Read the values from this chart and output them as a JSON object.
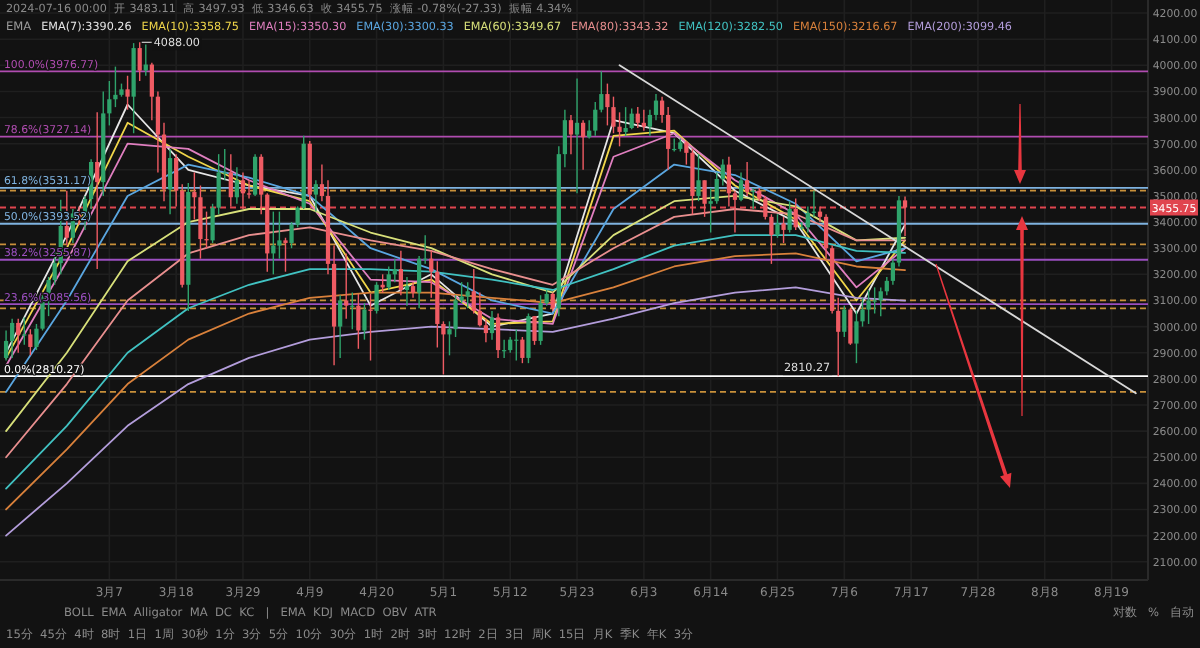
{
  "chart_data": {
    "type": "candlestick",
    "colors": [
      "#2fa36b",
      "#2fa36b",
      "#ef5b63",
      "#2fa36b",
      "#ef5b63",
      "#2fa36b",
      "#2fa36b",
      "#2fa36b",
      "#2fa36b",
      "#2fa36b",
      "#ef5b63",
      "#2fa36b",
      "#ef5b63",
      "#2fa36b",
      "#2fa36b",
      "#ef5b63",
      "#2fa36b",
      "#2fa36b",
      "#2fa36b",
      "#2fa36b",
      "#ef5b63",
      "#2fa36b",
      "#ef5b63",
      "#2fa36b",
      "#ef5b63",
      "#ef5b63",
      "#ef5b63",
      "#2fa36b",
      "#ef5b63",
      "#ef5b63",
      "#2fa36b",
      "#ef5b63",
      "#ef5b63",
      "#ef5b63",
      "#2fa36b",
      "#2fa36b",
      "#2fa36b",
      "#ef5b63",
      "#2fa36b",
      "#ef5b63",
      "#ef5b63",
      "#2fa36b",
      "#ef5b63",
      "#ef5b63",
      "#2fa36b",
      "#2fa36b",
      "#ef5b63",
      "#2fa36b",
      "#2fa36b",
      "#2fa36b",
      "#ef5b63",
      "#2fa36b",
      "#ef5b63",
      "#ef5b63",
      "#ef5b63",
      "#2fa36b",
      "#ef5b63",
      "#2fa36b",
      "#ef5b63",
      "#2fa36b",
      "#ef5b63",
      "#2fa36b",
      "#ef5b63",
      "#2fa36b",
      "#2fa36b",
      "#ef5b63",
      "#2fa36b",
      "#ef5b63",
      "#2fa36b",
      "#2fa36b",
      "#ef5b63",
      "#ef5b63",
      "#ef5b63",
      "#2fa36b",
      "#2fa36b",
      "#2fa36b",
      "#2fa36b",
      "#ef5b63",
      "#ef5b63",
      "#ef5b63",
      "#2fa36b",
      "#ef5b63",
      "#2fa36b",
      "#2fa36b",
      "#2fa36b",
      "#ef5b63",
      "#2fa36b",
      "#ef5b63",
      "#2fa36b",
      "#2fa36b",
      "#ef5b63",
      "#2fa36b",
      "#2fa36b",
      "#ef5b63",
      "#2fa36b",
      "#ef5b63",
      "#2fa36b",
      "#2fa36b",
      "#2fa36b",
      "#ef5b63",
      "#ef5b63",
      "#ef5b63",
      "#2fa36b",
      "#2fa36b",
      "#ef5b63",
      "#ef5b63",
      "#2fa36b",
      "#2fa36b",
      "#ef5b63",
      "#ef5b63",
      "#2fa36b",
      "#2fa36b",
      "#ef5b63",
      "#ef5b63",
      "#2fa36b",
      "#ef5b63",
      "#2fa36b",
      "#2fa36b",
      "#2fa36b",
      "#ef5b63",
      "#ef5b63",
      "#2fa36b",
      "#ef5b63",
      "#2fa36b",
      "#ef5b63",
      "#ef5b63",
      "#ef5b63",
      "#2fa36b",
      "#ef5b63",
      "#2fa36b",
      "#ef5b63",
      "#2fa36b",
      "#2fa36b",
      "#2fa36b",
      "#ef5b63",
      "#ef5b63",
      "#ef5b63",
      "#ef5b63",
      "#2fa36b",
      "#ef5b63",
      "#2fa36b",
      "#2fa36b",
      "#2fa36b",
      "#2fa36b",
      "#2fa36b",
      "#2fa36b",
      "#2fa36b",
      "#2fa36b",
      "#ef5b63"
    ],
    "x": [
      "2024-02-19",
      "2024-02-20",
      "2024-02-21",
      "2024-02-22",
      "2024-02-23",
      "2024-02-24",
      "2024-02-25",
      "2024-02-26",
      "2024-02-27",
      "2024-02-28",
      "2024-02-29",
      "2024-03-01",
      "2024-03-02",
      "2024-03-03",
      "2024-03-04",
      "2024-03-05",
      "2024-03-06",
      "2024-03-07",
      "2024-03-08",
      "2024-03-09",
      "2024-03-10",
      "2024-03-11",
      "2024-03-12",
      "2024-03-13",
      "2024-03-14",
      "2024-03-15",
      "2024-03-16",
      "2024-03-17",
      "2024-03-18",
      "2024-03-19",
      "2024-03-20",
      "2024-03-21",
      "2024-03-22",
      "2024-03-23",
      "2024-03-24",
      "2024-03-25",
      "2024-03-26",
      "2024-03-27",
      "2024-03-28",
      "2024-03-29",
      "2024-03-30",
      "2024-03-31",
      "2024-04-01",
      "2024-04-02",
      "2024-04-03",
      "2024-04-04",
      "2024-04-05",
      "2024-04-06",
      "2024-04-07",
      "2024-04-08",
      "2024-04-09",
      "2024-04-10",
      "2024-04-11",
      "2024-04-12",
      "2024-04-13",
      "2024-04-14",
      "2024-04-15",
      "2024-04-16",
      "2024-04-17",
      "2024-04-18",
      "2024-04-19",
      "2024-04-20",
      "2024-04-21",
      "2024-04-22",
      "2024-04-23",
      "2024-04-24",
      "2024-04-25",
      "2024-04-26",
      "2024-04-27",
      "2024-04-28",
      "2024-04-29",
      "2024-04-30",
      "2024-05-01",
      "2024-05-02",
      "2024-05-03",
      "2024-05-04",
      "2024-05-05",
      "2024-05-06",
      "2024-05-07",
      "2024-05-08",
      "2024-05-09",
      "2024-05-10",
      "2024-05-11",
      "2024-05-12",
      "2024-05-13",
      "2024-05-14",
      "2024-05-15",
      "2024-05-16",
      "2024-05-17",
      "2024-05-18",
      "2024-05-19",
      "2024-05-20",
      "2024-05-21",
      "2024-05-22",
      "2024-05-23",
      "2024-05-24",
      "2024-05-25",
      "2024-05-26",
      "2024-05-27",
      "2024-05-28",
      "2024-05-29",
      "2024-05-30",
      "2024-05-31",
      "2024-06-01",
      "2024-06-02",
      "2024-06-03",
      "2024-06-04",
      "2024-06-05",
      "2024-06-06",
      "2024-06-07",
      "2024-06-08",
      "2024-06-09",
      "2024-06-10",
      "2024-06-11",
      "2024-06-12",
      "2024-06-13",
      "2024-06-14",
      "2024-06-15",
      "2024-06-16",
      "2024-06-17",
      "2024-06-18",
      "2024-06-19",
      "2024-06-20",
      "2024-06-21",
      "2024-06-22",
      "2024-06-23",
      "2024-06-24",
      "2024-06-25",
      "2024-06-26",
      "2024-06-27",
      "2024-06-28",
      "2024-06-29",
      "2024-06-30",
      "2024-07-01",
      "2024-07-02",
      "2024-07-03",
      "2024-07-04",
      "2024-07-05",
      "2024-07-06",
      "2024-07-07",
      "2024-07-08",
      "2024-07-09",
      "2024-07-10",
      "2024-07-11",
      "2024-07-12",
      "2024-07-13",
      "2024-07-14",
      "2024-07-15",
      "2024-07-16"
    ],
    "ohlc": [
      [
        2880,
        2985,
        2870,
        2945
      ],
      [
        2945,
        3030,
        2880,
        3014
      ],
      [
        3014,
        3030,
        2900,
        2968
      ],
      [
        2968,
        3035,
        2930,
        2970
      ],
      [
        2970,
        2990,
        2890,
        2922
      ],
      [
        2922,
        3010,
        2910,
        2992
      ],
      [
        2992,
        3120,
        2985,
        3112
      ],
      [
        3112,
        3190,
        3040,
        3178
      ],
      [
        3178,
        3290,
        3160,
        3243
      ],
      [
        3243,
        3485,
        3200,
        3385
      ],
      [
        3385,
        3520,
        3310,
        3340
      ],
      [
        3340,
        3450,
        3320,
        3433
      ],
      [
        3433,
        3460,
        3390,
        3420
      ],
      [
        3420,
        3500,
        3370,
        3488
      ],
      [
        3488,
        3640,
        3450,
        3630
      ],
      [
        3630,
        3820,
        3220,
        3553
      ],
      [
        3553,
        3900,
        3500,
        3816
      ],
      [
        3816,
        3940,
        3770,
        3870
      ],
      [
        3870,
        3995,
        3840,
        3887
      ],
      [
        3887,
        3930,
        3880,
        3908
      ],
      [
        3908,
        3960,
        3830,
        3880
      ],
      [
        3880,
        4085,
        3740,
        4066
      ],
      [
        4066,
        4088,
        3940,
        3980
      ],
      [
        3980,
        4080,
        3960,
        4003
      ],
      [
        4003,
        4010,
        3790,
        3880
      ],
      [
        3880,
        3900,
        3590,
        3735
      ],
      [
        3735,
        3780,
        3480,
        3525
      ],
      [
        3525,
        3680,
        3430,
        3645
      ],
      [
        3645,
        3660,
        3460,
        3520
      ],
      [
        3520,
        3545,
        3150,
        3160
      ],
      [
        3160,
        3550,
        3060,
        3515
      ],
      [
        3515,
        3590,
        3410,
        3495
      ],
      [
        3495,
        3540,
        3260,
        3335
      ],
      [
        3335,
        3440,
        3300,
        3330
      ],
      [
        3330,
        3470,
        3320,
        3455
      ],
      [
        3455,
        3660,
        3430,
        3590
      ],
      [
        3590,
        3680,
        3560,
        3590
      ],
      [
        3590,
        3660,
        3460,
        3495
      ],
      [
        3495,
        3610,
        3470,
        3560
      ],
      [
        3560,
        3590,
        3450,
        3510
      ],
      [
        3510,
        3560,
        3490,
        3505
      ],
      [
        3505,
        3660,
        3500,
        3650
      ],
      [
        3650,
        3660,
        3430,
        3505
      ],
      [
        3505,
        3510,
        3210,
        3280
      ],
      [
        3280,
        3440,
        3200,
        3310
      ],
      [
        3310,
        3440,
        3260,
        3330
      ],
      [
        3330,
        3340,
        3210,
        3320
      ],
      [
        3320,
        3400,
        3300,
        3390
      ],
      [
        3390,
        3460,
        3380,
        3455
      ],
      [
        3455,
        3730,
        3450,
        3700
      ],
      [
        3700,
        3710,
        3480,
        3505
      ],
      [
        3505,
        3560,
        3440,
        3545
      ],
      [
        3545,
        3620,
        3480,
        3500
      ],
      [
        3500,
        3560,
        3200,
        3240
      ],
      [
        3240,
        3310,
        2852,
        3000
      ],
      [
        3000,
        3120,
        2880,
        3100
      ],
      [
        3100,
        3280,
        3030,
        3080
      ],
      [
        3080,
        3130,
        2990,
        3080
      ],
      [
        3080,
        3125,
        2915,
        2985
      ],
      [
        2985,
        3090,
        2950,
        3065
      ],
      [
        3065,
        3125,
        2870,
        3060
      ],
      [
        3060,
        3170,
        3050,
        3160
      ],
      [
        3160,
        3200,
        3130,
        3150
      ],
      [
        3150,
        3230,
        3140,
        3200
      ],
      [
        3200,
        3260,
        3170,
        3220
      ],
      [
        3220,
        3290,
        3120,
        3140
      ],
      [
        3140,
        3190,
        3080,
        3155
      ],
      [
        3155,
        3170,
        3110,
        3130
      ],
      [
        3130,
        3270,
        3070,
        3260
      ],
      [
        3260,
        3350,
        3240,
        3260
      ],
      [
        3260,
        3290,
        3110,
        3210
      ],
      [
        3210,
        3250,
        2920,
        3010
      ],
      [
        3010,
        3020,
        2817,
        2970
      ],
      [
        2970,
        3020,
        2890,
        2990
      ],
      [
        2990,
        3120,
        2960,
        3100
      ],
      [
        3100,
        3170,
        3090,
        3115
      ],
      [
        3115,
        3170,
        3070,
        3135
      ],
      [
        3135,
        3220,
        3050,
        3060
      ],
      [
        3060,
        3130,
        3000,
        3005
      ],
      [
        3005,
        3030,
        2940,
        2975
      ],
      [
        2975,
        3060,
        2950,
        3035
      ],
      [
        3035,
        3050,
        2880,
        2910
      ],
      [
        2910,
        2950,
        2880,
        2910
      ],
      [
        2910,
        2960,
        2900,
        2950
      ],
      [
        2950,
        2990,
        2870,
        2950
      ],
      [
        2950,
        2960,
        2860,
        2880
      ],
      [
        2880,
        3050,
        2860,
        3040
      ],
      [
        3040,
        3040,
        2930,
        2945
      ],
      [
        2945,
        3120,
        2930,
        3090
      ],
      [
        3090,
        3140,
        3080,
        3125
      ],
      [
        3125,
        3130,
        3060,
        3070
      ],
      [
        3070,
        3690,
        3040,
        3660
      ],
      [
        3660,
        3830,
        3610,
        3790
      ],
      [
        3790,
        3810,
        3660,
        3735
      ],
      [
        3735,
        3950,
        3510,
        3780
      ],
      [
        3780,
        3790,
        3600,
        3725
      ],
      [
        3725,
        3790,
        3720,
        3750
      ],
      [
        3750,
        3860,
        3730,
        3830
      ],
      [
        3830,
        3977,
        3820,
        3890
      ],
      [
        3890,
        3930,
        3770,
        3840
      ],
      [
        3840,
        3880,
        3740,
        3765
      ],
      [
        3765,
        3820,
        3690,
        3745
      ],
      [
        3745,
        3840,
        3730,
        3760
      ],
      [
        3760,
        3835,
        3755,
        3815
      ],
      [
        3815,
        3840,
        3760,
        3780
      ],
      [
        3780,
        3830,
        3750,
        3765
      ],
      [
        3765,
        3830,
        3730,
        3810
      ],
      [
        3810,
        3890,
        3790,
        3865
      ],
      [
        3865,
        3880,
        3780,
        3810
      ],
      [
        3810,
        3840,
        3600,
        3680
      ],
      [
        3680,
        3720,
        3670,
        3680
      ],
      [
        3680,
        3720,
        3670,
        3705
      ],
      [
        3705,
        3710,
        3620,
        3665
      ],
      [
        3665,
        3680,
        3430,
        3500
      ],
      [
        3500,
        3660,
        3480,
        3560
      ],
      [
        3560,
        3560,
        3420,
        3470
      ],
      [
        3470,
        3530,
        3360,
        3480
      ],
      [
        3480,
        3590,
        3470,
        3565
      ],
      [
        3565,
        3640,
        3540,
        3620
      ],
      [
        3620,
        3650,
        3460,
        3510
      ],
      [
        3510,
        3520,
        3360,
        3485
      ],
      [
        3485,
        3590,
        3480,
        3560
      ],
      [
        3560,
        3630,
        3500,
        3515
      ],
      [
        3515,
        3530,
        3450,
        3520
      ],
      [
        3520,
        3530,
        3480,
        3490
      ],
      [
        3490,
        3500,
        3410,
        3420
      ],
      [
        3420,
        3430,
        3240,
        3350
      ],
      [
        3350,
        3430,
        3340,
        3395
      ],
      [
        3395,
        3420,
        3320,
        3370
      ],
      [
        3370,
        3480,
        3360,
        3450
      ],
      [
        3450,
        3490,
        3370,
        3380
      ],
      [
        3380,
        3400,
        3370,
        3380
      ],
      [
        3380,
        3460,
        3360,
        3435
      ],
      [
        3435,
        3520,
        3420,
        3440
      ],
      [
        3440,
        3460,
        3400,
        3420
      ],
      [
        3420,
        3430,
        3260,
        3300
      ],
      [
        3300,
        3310,
        3050,
        3060
      ],
      [
        3060,
        3110,
        2810.27,
        2980
      ],
      [
        2980,
        3080,
        2960,
        3065
      ],
      [
        3065,
        3070,
        2930,
        2935
      ],
      [
        2935,
        3060,
        2860,
        3020
      ],
      [
        3020,
        3110,
        3000,
        3065
      ],
      [
        3065,
        3140,
        3010,
        3100
      ],
      [
        3100,
        3150,
        3050,
        3100
      ],
      [
        3100,
        3150,
        3040,
        3135
      ],
      [
        3135,
        3190,
        3120,
        3175
      ],
      [
        3175,
        3260,
        3160,
        3245
      ],
      [
        3245,
        3500,
        3230,
        3483.11
      ],
      [
        3483.11,
        3497.93,
        3346.63,
        3455.75
      ]
    ],
    "legend_title": "EMA",
    "legend": "top left",
    "series": [
      {
        "type": "line",
        "name": "EMA(7):3390.26",
        "color": "#e6e6e6",
        "x": [
          "2024-02-19",
          "2024-02-29",
          "2024-03-10",
          "2024-03-20",
          "2024-03-30",
          "2024-04-09",
          "2024-04-19",
          "2024-04-29",
          "2024-05-09",
          "2024-05-19",
          "2024-05-29",
          "2024-06-08",
          "2024-06-18",
          "2024-06-28",
          "2024-07-08",
          "2024-07-16"
        ],
        "values": [
          2900,
          3350,
          3850,
          3600,
          3540,
          3500,
          3080,
          3200,
          3000,
          3050,
          3790,
          3740,
          3520,
          3400,
          3050,
          3390
        ]
      },
      {
        "type": "line",
        "name": "EMA(10):3358.75",
        "color": "#f0d64a",
        "x": [
          "2024-02-19",
          "2024-02-29",
          "2024-03-10",
          "2024-03-20",
          "2024-03-30",
          "2024-04-09",
          "2024-04-19",
          "2024-04-29",
          "2024-05-09",
          "2024-05-19",
          "2024-05-29",
          "2024-06-08",
          "2024-06-18",
          "2024-06-28",
          "2024-07-08",
          "2024-07-16"
        ],
        "values": [
          2880,
          3300,
          3780,
          3650,
          3540,
          3480,
          3130,
          3180,
          3010,
          3020,
          3730,
          3750,
          3540,
          3410,
          3100,
          3330
        ]
      },
      {
        "type": "line",
        "name": "EMA(15):3350.30",
        "color": "#e07fc0",
        "x": [
          "2024-02-19",
          "2024-02-29",
          "2024-03-10",
          "2024-03-20",
          "2024-03-30",
          "2024-04-09",
          "2024-04-19",
          "2024-04-29",
          "2024-05-09",
          "2024-05-19",
          "2024-05-29",
          "2024-06-08",
          "2024-06-18",
          "2024-06-28",
          "2024-07-08",
          "2024-07-16"
        ],
        "values": [
          2850,
          3250,
          3700,
          3680,
          3560,
          3470,
          3180,
          3170,
          3030,
          3010,
          3650,
          3740,
          3560,
          3430,
          3150,
          3300
        ]
      },
      {
        "type": "line",
        "name": "EMA(30):3300.33",
        "color": "#5aa6e0",
        "x": [
          "2024-02-19",
          "2024-02-29",
          "2024-03-10",
          "2024-03-20",
          "2024-03-30",
          "2024-04-09",
          "2024-04-19",
          "2024-04-29",
          "2024-05-09",
          "2024-05-19",
          "2024-05-29",
          "2024-06-08",
          "2024-06-18",
          "2024-06-28",
          "2024-07-08",
          "2024-07-16"
        ],
        "values": [
          2750,
          3100,
          3500,
          3620,
          3570,
          3500,
          3300,
          3220,
          3100,
          3050,
          3450,
          3620,
          3580,
          3470,
          3250,
          3300
        ]
      },
      {
        "type": "line",
        "name": "EMA(60):3349.67",
        "color": "#d8e07a",
        "x": [
          "2024-02-19",
          "2024-02-29",
          "2024-03-10",
          "2024-03-20",
          "2024-03-30",
          "2024-04-09",
          "2024-04-19",
          "2024-04-29",
          "2024-05-09",
          "2024-05-19",
          "2024-05-29",
          "2024-06-08",
          "2024-06-18",
          "2024-06-28",
          "2024-07-08",
          "2024-07-16"
        ],
        "values": [
          2600,
          2900,
          3250,
          3400,
          3450,
          3450,
          3360,
          3300,
          3200,
          3130,
          3350,
          3480,
          3500,
          3460,
          3330,
          3340
        ]
      },
      {
        "type": "line",
        "name": "EMA(80):3343.32",
        "color": "#e98f8f",
        "x": [
          "2024-02-19",
          "2024-02-29",
          "2024-03-10",
          "2024-03-20",
          "2024-03-30",
          "2024-04-09",
          "2024-04-19",
          "2024-04-29",
          "2024-05-09",
          "2024-05-19",
          "2024-05-29",
          "2024-06-08",
          "2024-06-18",
          "2024-06-28",
          "2024-07-08",
          "2024-07-16"
        ],
        "values": [
          2500,
          2780,
          3100,
          3280,
          3350,
          3380,
          3330,
          3290,
          3220,
          3160,
          3300,
          3420,
          3450,
          3430,
          3330,
          3330
        ]
      },
      {
        "type": "line",
        "name": "EMA(120):3282.50",
        "color": "#41c2c2",
        "x": [
          "2024-02-19",
          "2024-02-29",
          "2024-03-10",
          "2024-03-20",
          "2024-03-30",
          "2024-04-09",
          "2024-04-19",
          "2024-04-29",
          "2024-05-09",
          "2024-05-19",
          "2024-05-29",
          "2024-06-08",
          "2024-06-18",
          "2024-06-28",
          "2024-07-08",
          "2024-07-16"
        ],
        "values": [
          2380,
          2620,
          2900,
          3070,
          3160,
          3220,
          3220,
          3210,
          3180,
          3140,
          3220,
          3310,
          3350,
          3350,
          3290,
          3282
        ]
      },
      {
        "type": "line",
        "name": "EMA(150):3216.67",
        "color": "#d9813b",
        "x": [
          "2024-02-19",
          "2024-02-29",
          "2024-03-10",
          "2024-03-20",
          "2024-03-30",
          "2024-04-09",
          "2024-04-19",
          "2024-04-29",
          "2024-05-09",
          "2024-05-19",
          "2024-05-29",
          "2024-06-08",
          "2024-06-18",
          "2024-06-28",
          "2024-07-08",
          "2024-07-16"
        ],
        "values": [
          2300,
          2530,
          2780,
          2950,
          3050,
          3110,
          3130,
          3130,
          3110,
          3090,
          3150,
          3230,
          3270,
          3280,
          3230,
          3216
        ]
      },
      {
        "type": "line",
        "name": "EMA(200):3099.46",
        "color": "#b39ddb",
        "x": [
          "2024-02-19",
          "2024-02-29",
          "2024-03-10",
          "2024-03-20",
          "2024-03-30",
          "2024-04-09",
          "2024-04-19",
          "2024-04-29",
          "2024-05-09",
          "2024-05-19",
          "2024-05-29",
          "2024-06-08",
          "2024-06-18",
          "2024-06-28",
          "2024-07-08",
          "2024-07-16"
        ],
        "values": [
          2200,
          2400,
          2620,
          2780,
          2880,
          2950,
          2980,
          3000,
          2990,
          2980,
          3030,
          3090,
          3130,
          3150,
          3110,
          3099
        ]
      },
      {
        "type": "line",
        "color": "#d8d8d8",
        "x": [
          "2024-05-30",
          "2024-08-23"
        ],
        "values": [
          4000,
          2745
        ]
      }
    ],
    "ref_lines": [
      {
        "axis": "y",
        "value": 3976.77,
        "label": "100.0%(3976.77)",
        "color": "#b04cb0",
        "line_style": "solid"
      },
      {
        "axis": "y",
        "value": 3727.14,
        "label": "78.6%(3727.14)",
        "color": "#b04cb0",
        "line_style": "solid"
      },
      {
        "axis": "y",
        "value": 3531.17,
        "label": "61.8%(3531.17)",
        "color": "#7fb3e0",
        "line_style": "solid"
      },
      {
        "axis": "y",
        "value": 3393.52,
        "label": "50.0%(3393.52)",
        "color": "#7fb3e0",
        "line_style": "solid"
      },
      {
        "axis": "y",
        "value": 3255.87,
        "label": "38.2%(3255.87)",
        "color": "#9b4fc0",
        "line_style": "solid"
      },
      {
        "axis": "y",
        "value": 3085.56,
        "label": "23.6%(3085.56)",
        "color": "#9b4fc0",
        "line_style": "solid"
      },
      {
        "axis": "y",
        "value": 2810.27,
        "label": "0.0%(2810.27)",
        "color": "#ffffff",
        "line_style": "solid"
      },
      {
        "axis": "y",
        "value": 3520,
        "color": "#c8903a",
        "line_style": "dashed"
      },
      {
        "axis": "y",
        "value": 3315,
        "color": "#c8903a",
        "line_style": "dashed"
      },
      {
        "axis": "y",
        "value": 3100,
        "color": "#c8903a",
        "line_style": "dashed"
      },
      {
        "axis": "y",
        "value": 3070,
        "color": "#c8903a",
        "line_style": "dashed"
      },
      {
        "axis": "y",
        "value": 2750,
        "color": "#c8903a",
        "line_style": "dashed"
      },
      {
        "axis": "y",
        "value": 3455.75,
        "label": "3455.75",
        "color": "#e0454f",
        "line_style": "dashed"
      }
    ],
    "annotations": [
      "2024-07-16 00:00  开 3483.11  高 3497.93  低 3346.63  收 3455.75  涨幅 -0.78%(-27.33)  振幅 4.34%",
      "BOLL  EMA  Alligator  MA  DC  KC   |   EMA  KDJ  MACD  OBV  ATR",
      "15分  45分  4时  8时  1日  1周  30秒  1分  3分  5分  10分  30分  1时  2时  3时  12时  2日  3日  周K  15日  月K  季K  年K  3分",
      "对数   %   自动",
      {
        "text": "4088.00",
        "x": "2024-03-12",
        "y": 4088
      },
      {
        "text": "2810.27",
        "x": "2024-07-05",
        "y": 2810.27
      }
    ],
    "xlim": [
      "2024-02-18",
      "2024-08-25"
    ],
    "xticks": [
      {
        "value": "2024-03-07",
        "label": "3月7"
      },
      {
        "value": "2024-03-18",
        "label": "3月18"
      },
      {
        "value": "2024-03-29",
        "label": "3月29"
      },
      {
        "value": "2024-04-09",
        "label": "4月9"
      },
      {
        "value": "2024-04-20",
        "label": "4月20"
      },
      {
        "value": "2024-05-01",
        "label": "5月1"
      },
      {
        "value": "2024-05-12",
        "label": "5月12"
      },
      {
        "value": "2024-05-23",
        "label": "5月23"
      },
      {
        "value": "2024-06-03",
        "label": "6月3"
      },
      {
        "value": "2024-06-14",
        "label": "6月14"
      },
      {
        "value": "2024-06-25",
        "label": "6月25"
      },
      {
        "value": "2024-07-06",
        "label": "7月6"
      },
      {
        "value": "2024-07-17",
        "label": "7月17"
      },
      {
        "value": "2024-07-28",
        "label": "7月28"
      },
      {
        "value": "2024-08-08",
        "label": "8月8"
      },
      {
        "value": "2024-08-19",
        "label": "8月19"
      }
    ],
    "ylim": [
      2030,
      4250
    ],
    "yticks": [
      {
        "value": 2100,
        "label": "2100.00"
      },
      {
        "value": 2200,
        "label": "2200.00"
      },
      {
        "value": 2300,
        "label": "2300.00"
      },
      {
        "value": 2400,
        "label": "2400.00"
      },
      {
        "value": 2500,
        "label": "2500.00"
      },
      {
        "value": 2600,
        "label": "2600.00"
      },
      {
        "value": 2700,
        "label": "2700.00"
      },
      {
        "value": 2800,
        "label": "2800.00"
      },
      {
        "value": 2900,
        "label": "2900.00"
      },
      {
        "value": 3000,
        "label": "3000.00"
      },
      {
        "value": 3100,
        "label": "3100.00"
      },
      {
        "value": 3200,
        "label": "3200.00"
      },
      {
        "value": 3300,
        "label": "3300.00"
      },
      {
        "value": 3400,
        "label": "3400.00"
      },
      {
        "value": 3500,
        "label": "3500.00"
      },
      {
        "value": 3600,
        "label": "3600.00"
      },
      {
        "value": 3700,
        "label": "3700.00"
      },
      {
        "value": 3800,
        "label": "3800.00"
      },
      {
        "value": 3900,
        "label": "3900.00"
      },
      {
        "value": 4000,
        "label": "4000.00"
      },
      {
        "value": 4100,
        "label": "4100.00"
      },
      {
        "value": 4200,
        "label": "4200.00"
      }
    ],
    "grid": true
  }
}
